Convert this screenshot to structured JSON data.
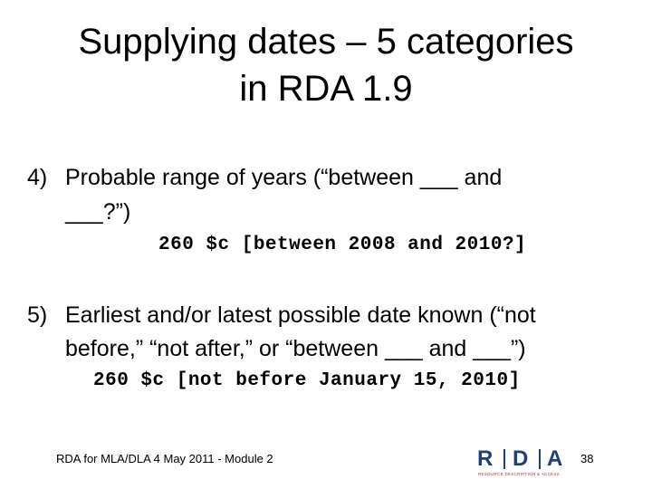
{
  "title": {
    "lines": [
      "Supplying dates – 5 categories",
      "in RDA 1.9"
    ]
  },
  "items": [
    {
      "number": "4)",
      "lines": [
        "Probable range of years (“between ___ and",
        "___?”)"
      ],
      "example": "260 $c [between 2008 and 2010?]"
    },
    {
      "number": "5)",
      "lines": [
        "Earliest and/or latest possible date known (“not",
        "before,” “not after,” or “between ___ and ___”)"
      ],
      "example": "260 $c [not before January 15, 2010]"
    }
  ],
  "footer": {
    "text": "RDA for MLA/DLA 4 May 2011 - Module 2",
    "page": "38",
    "logo": {
      "letters": [
        "R",
        "D",
        "A"
      ],
      "tagline": "RESOURCE DESCRIPTION & ACCESS"
    }
  }
}
